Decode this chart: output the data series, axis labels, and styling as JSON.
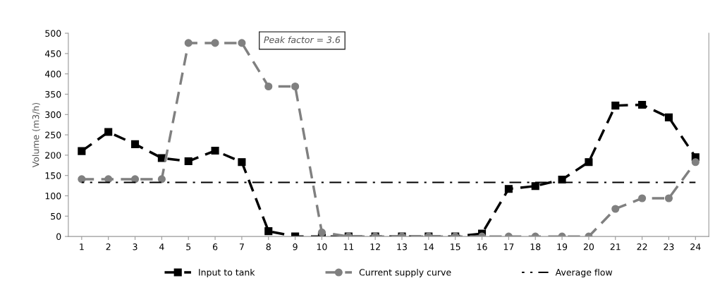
{
  "chart_data": {
    "type": "line",
    "ylabel": "Volume (m3/h)",
    "categories": [
      "1",
      "2",
      "3",
      "4",
      "5",
      "6",
      "7",
      "8",
      "9",
      "10",
      "11",
      "12",
      "13",
      "14",
      "15",
      "16",
      "17",
      "18",
      "19",
      "20",
      "21",
      "22",
      "23",
      "24"
    ],
    "series": [
      {
        "name": "Input to tank",
        "color": "#000000",
        "marker": "square",
        "line_style": "dashed",
        "values": [
          210,
          257,
          227,
          193,
          185,
          211,
          183,
          13,
          0,
          0,
          0,
          0,
          0,
          0,
          0,
          7,
          117,
          124,
          140,
          183,
          322,
          324,
          293,
          195
        ]
      },
      {
        "name": "Current supply curve",
        "color": "#808080",
        "marker": "circle",
        "line_style": "dashed",
        "values": [
          141,
          141,
          141,
          141,
          476,
          476,
          476,
          369,
          369,
          10,
          0,
          0,
          0,
          0,
          0,
          0,
          0,
          0,
          0,
          0,
          68,
          94,
          94,
          183
        ]
      },
      {
        "name": "Average flow",
        "color": "#000000",
        "marker": "none",
        "line_style": "dashdot",
        "values": [
          133,
          133,
          133,
          133,
          133,
          133,
          133,
          133,
          133,
          133,
          133,
          133,
          133,
          133,
          133,
          133,
          133,
          133,
          133,
          133,
          133,
          133,
          133,
          133
        ]
      }
    ],
    "ylim": [
      0,
      500
    ],
    "yticks": [
      0,
      50,
      100,
      150,
      200,
      250,
      300,
      350,
      400,
      450,
      500
    ],
    "grid": false,
    "legend": "bottom",
    "annotations": [
      "Peak factor = 3.6"
    ]
  }
}
